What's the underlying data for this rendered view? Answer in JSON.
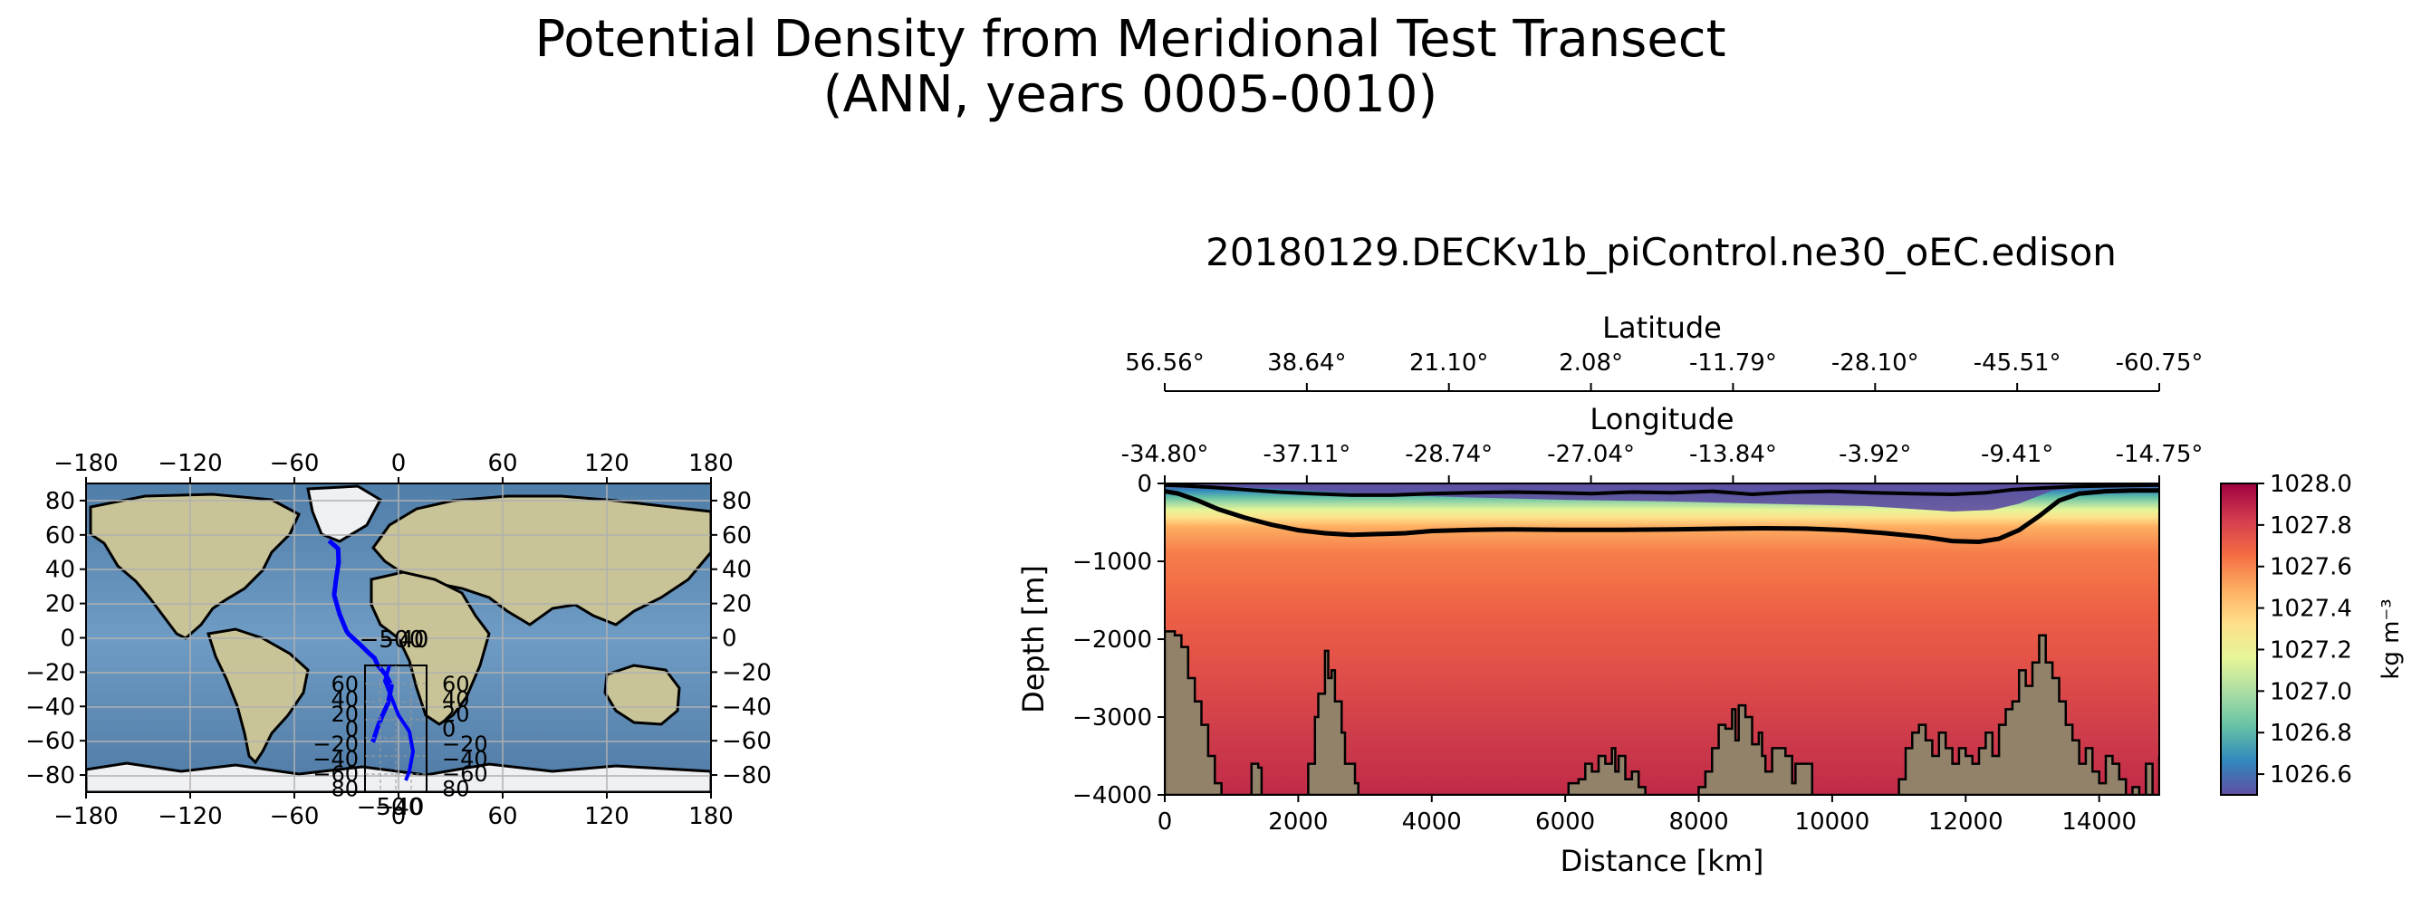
{
  "figure": {
    "suptitle_line1": "Potential Density from Meridional Test Transect",
    "suptitle_line2": "(ANN, years 0005-0010)",
    "subtitle": "20180129.DECKv1b_piControl.ne30_oEC.edison"
  },
  "colors": {
    "transect_line": "#0000ff",
    "bathymetry": "#918269",
    "ocean": "#5b87b2",
    "land": "#c9c497",
    "ice": "#eef0f3",
    "colormap": [
      "#5e4fa2",
      "#3288bd",
      "#66c2a5",
      "#abdda4",
      "#e6f598",
      "#fee08b",
      "#fdae61",
      "#f46d43",
      "#d53e4f",
      "#9e0142"
    ]
  },
  "chart_data": [
    {
      "type": "map",
      "projection": "PlateCarree",
      "xticks": [
        "−180",
        "−120",
        "−60",
        "0",
        "60",
        "120",
        "180"
      ],
      "yticks": [
        "80",
        "60",
        "40",
        "20",
        "0",
        "−20",
        "−40",
        "−60",
        "−80"
      ],
      "xlim": [
        -180,
        180
      ],
      "ylim": [
        -90,
        90
      ],
      "grid": true,
      "transect": {
        "name": "Meridional Test Transect",
        "lon": [
          -40.0,
          -34.8,
          -34.5,
          -36.0,
          -37.1,
          -34.0,
          -30.0,
          -28.7,
          -22.0,
          -17.0,
          -13.8,
          -12.0,
          -7.0,
          -4.0,
          -6.0,
          -9.4,
          -12.0,
          -14.8
        ],
        "lat": [
          56.6,
          52.0,
          44.0,
          34.0,
          25.0,
          14.0,
          4.0,
          2.1,
          -4.0,
          -9.0,
          -11.8,
          -16.0,
          -22.0,
          -28.1,
          -38.0,
          -45.5,
          -52.0,
          -60.8
        ]
      },
      "overlapping_tick_labels": {
        "main_axis_label": "−50",
        "inset_axis_labels": [
          "−40",
          "0"
        ],
        "inset_y_left": [
          "60",
          "40",
          "20",
          "0",
          "−20",
          "−40",
          "−60",
          "80"
        ],
        "inset_y_right": [
          "60",
          "40",
          "20",
          "0",
          "−20",
          "−40",
          "−60",
          "80"
        ]
      }
    },
    {
      "type": "heatmap",
      "title": "20180129.DECKv1b_piControl.ne30_oEC.edison",
      "xlabel": "Distance [km]",
      "ylabel": "Depth [m]",
      "xlim": [
        0,
        14900
      ],
      "ylim": [
        -4000,
        0
      ],
      "xticks": [
        0,
        2000,
        4000,
        6000,
        8000,
        10000,
        12000,
        14000
      ],
      "yticks": [
        0,
        -1000,
        -2000,
        -3000,
        -4000
      ],
      "secondary_axes": [
        {
          "label": "Latitude",
          "ticks": [
            "56.56°",
            "38.64°",
            "21.10°",
            "2.08°",
            "-11.79°",
            "-28.10°",
            "-45.51°",
            "-60.75°"
          ]
        },
        {
          "label": "Longitude",
          "ticks": [
            "-34.80°",
            "-37.11°",
            "-28.74°",
            "-27.04°",
            "-13.84°",
            "-3.92°",
            "-9.41°",
            "-14.75°"
          ]
        }
      ],
      "colorbar": {
        "label": "kg m⁻³",
        "ticks": [
          "1028.0",
          "1027.8",
          "1027.6",
          "1027.4",
          "1027.2",
          "1027.0",
          "1026.8",
          "1026.6"
        ],
        "range": [
          1026.5,
          1028.0
        ]
      },
      "contour_lines": [
        {
          "name": "upper",
          "x": [
            0,
            300,
            700,
            1200,
            1700,
            2200,
            2800,
            3400,
            4000,
            4600,
            5200,
            5800,
            6400,
            7000,
            7600,
            8200,
            8800,
            9400,
            10000,
            10600,
            11200,
            11800,
            12300,
            12700,
            13100,
            13600,
            14100,
            14900
          ],
          "y": [
            -20,
            -30,
            -50,
            -80,
            -110,
            -130,
            -150,
            -150,
            -130,
            -120,
            -110,
            -120,
            -130,
            -110,
            -120,
            -100,
            -140,
            -110,
            -100,
            -120,
            -130,
            -140,
            -120,
            -80,
            -60,
            -40,
            -30,
            -20
          ]
        },
        {
          "name": "lower",
          "x": [
            0,
            200,
            500,
            800,
            1200,
            1600,
            2000,
            2400,
            2800,
            3200,
            3600,
            4000,
            4600,
            5200,
            6000,
            6800,
            7600,
            8400,
            9000,
            9600,
            10200,
            10800,
            11400,
            11800,
            12200,
            12500,
            12800,
            13100,
            13400,
            13700,
            14100,
            14500,
            14900
          ],
          "y": [
            -100,
            -130,
            -220,
            -330,
            -440,
            -530,
            -600,
            -640,
            -660,
            -650,
            -640,
            -610,
            -595,
            -590,
            -595,
            -595,
            -590,
            -580,
            -575,
            -580,
            -600,
            -640,
            -690,
            -740,
            -750,
            -710,
            -600,
            -420,
            -220,
            -130,
            -100,
            -90,
            -90
          ]
        }
      ],
      "bathymetry": {
        "x": [
          0,
          150,
          250,
          350,
          450,
          550,
          650,
          750,
          850,
          950,
          1100,
          1250,
          1300,
          1400,
          1450,
          1500,
          1600,
          2100,
          2150,
          2250,
          2300,
          2400,
          2450,
          2500,
          2550,
          2650,
          2700,
          2850,
          2900,
          3000,
          3100,
          3200,
          5950,
          6050,
          6200,
          6300,
          6400,
          6500,
          6600,
          6700,
          6750,
          6800,
          6900,
          7000,
          7100,
          7200,
          7300,
          7400,
          7500,
          7600,
          7700,
          7750,
          7800,
          8000,
          8100,
          8200,
          8300,
          8400,
          8500,
          8550,
          8600,
          8700,
          8800,
          8900,
          8950,
          9000,
          9100,
          9200,
          9300,
          9400,
          9450,
          9500,
          9700,
          9800,
          9900,
          10000,
          10100,
          10200,
          10900,
          11000,
          11100,
          11200,
          11300,
          11400,
          11500,
          11600,
          11700,
          11800,
          11900,
          12000,
          12100,
          12200,
          12300,
          12400,
          12500,
          12600,
          12700,
          12800,
          12900,
          13000,
          13100,
          13200,
          13300,
          13400,
          13500,
          13600,
          13700,
          13800,
          13900,
          14000,
          14100,
          14200,
          14300,
          14400,
          14500,
          14600,
          14700,
          14800,
          14900
        ],
        "y": [
          -1900,
          -1950,
          -2100,
          -2500,
          -2800,
          -3100,
          -3500,
          -3850,
          -4000,
          -4000,
          -4000,
          -4000,
          -3600,
          -3650,
          -4000,
          -4000,
          -4000,
          -4000,
          -3600,
          -3000,
          -2700,
          -2150,
          -2500,
          -2400,
          -2800,
          -3200,
          -3600,
          -3850,
          -4000,
          -4000,
          -4000,
          -4000,
          -4000,
          -3850,
          -3800,
          -3600,
          -3700,
          -3500,
          -3600,
          -3400,
          -3700,
          -3500,
          -3800,
          -3700,
          -3900,
          -4000,
          -4000,
          -4000,
          -4000,
          -4000,
          -4000,
          -4000,
          -4000,
          -3900,
          -3700,
          -3400,
          -3100,
          -3150,
          -2900,
          -3300,
          -2850,
          -3000,
          -3350,
          -3200,
          -3500,
          -3700,
          -3400,
          -3400,
          -3500,
          -3850,
          -3600,
          -3600,
          -4000,
          -4000,
          -4000,
          -4000,
          -4000,
          -4000,
          -4000,
          -3800,
          -3400,
          -3200,
          -3100,
          -3300,
          -3500,
          -3200,
          -3400,
          -3600,
          -3400,
          -3500,
          -3600,
          -3400,
          -3200,
          -3500,
          -3100,
          -2900,
          -2800,
          -2400,
          -2600,
          -2300,
          -1950,
          -2300,
          -2500,
          -2800,
          -3100,
          -3300,
          -3600,
          -3400,
          -3700,
          -3850,
          -3500,
          -3600,
          -3800,
          -4000,
          -3900,
          -4000,
          -3600,
          -4000,
          -3500,
          -4000,
          -4000
        ]
      }
    }
  ]
}
